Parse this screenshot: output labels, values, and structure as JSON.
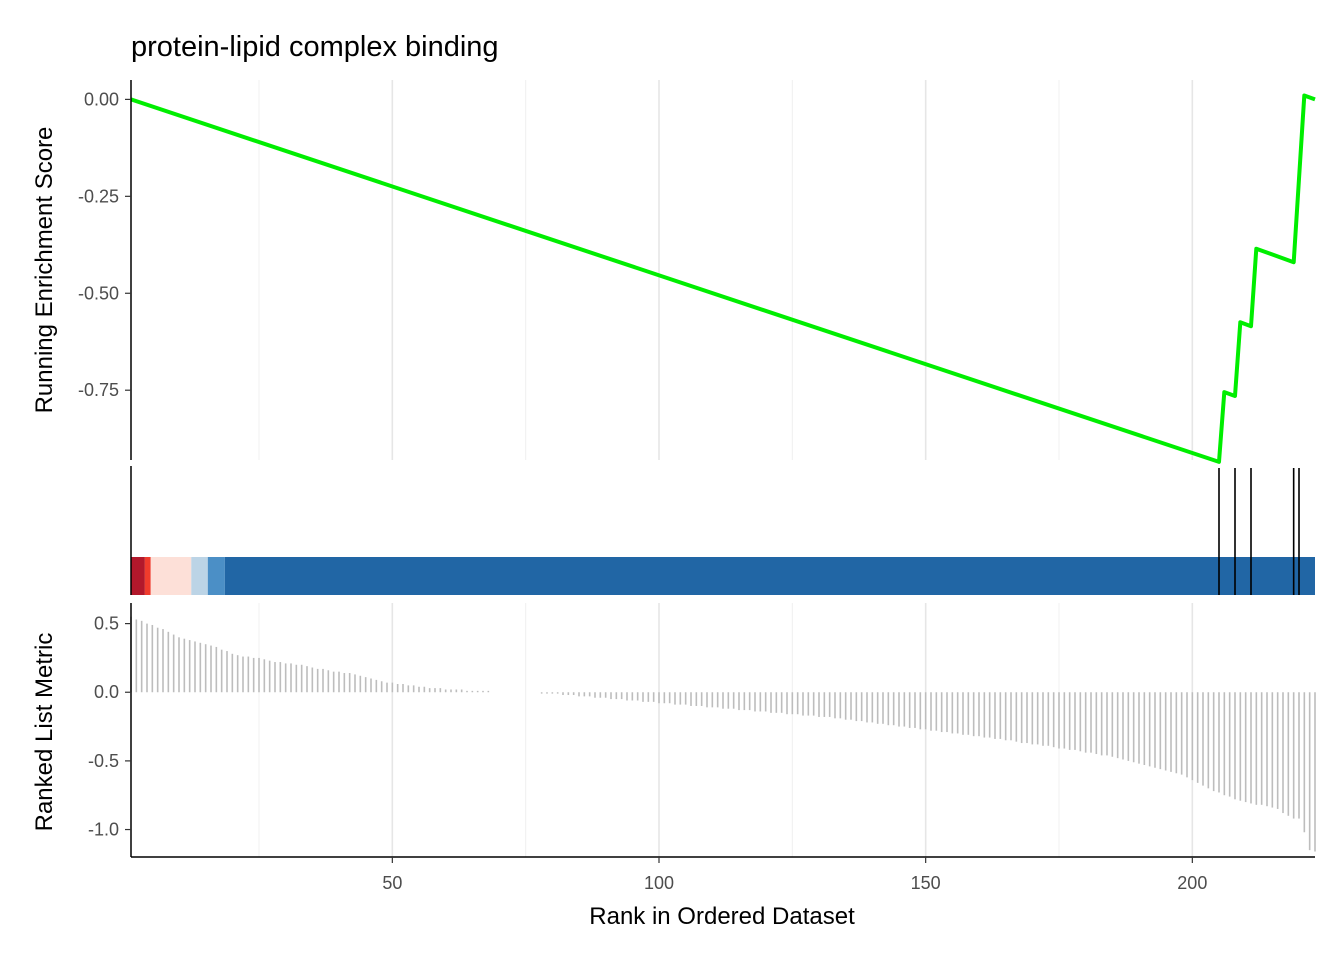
{
  "chart_data": {
    "type": "line",
    "title": "protein-lipid complex binding",
    "xlabel": "Rank in Ordered Dataset",
    "xlim": [
      1,
      223
    ],
    "x_ticks": [
      "50",
      "100",
      "150",
      "200"
    ],
    "panels": [
      {
        "id": "running-es",
        "type": "line",
        "ylabel": "Running Enrichment Score",
        "ylim": [
          -0.93,
          0.05
        ],
        "y_ticks": [
          "0.00",
          "-0.25",
          "-0.50",
          "-0.75"
        ],
        "line_color": "#00ee00",
        "points": [
          [
            1,
            0.0
          ],
          [
            205,
            -0.935
          ],
          [
            206,
            -0.755
          ],
          [
            208,
            -0.765
          ],
          [
            209,
            -0.575
          ],
          [
            211,
            -0.585
          ],
          [
            212,
            -0.385
          ],
          [
            219,
            -0.42
          ],
          [
            221,
            0.01
          ],
          [
            223,
            0.0
          ]
        ]
      },
      {
        "id": "gene-hits",
        "type": "rug",
        "hits": [
          205,
          208,
          211,
          219,
          220
        ],
        "color_bands": [
          {
            "from": 0.5,
            "to": 3.6,
            "color": "#b2182b"
          },
          {
            "from": 3.6,
            "to": 4.7,
            "color": "#ef3b2c"
          },
          {
            "from": 4.7,
            "to": 12.3,
            "color": "#fde0d8"
          },
          {
            "from": 12.3,
            "to": 15.4,
            "color": "#bcd4e6"
          },
          {
            "from": 15.4,
            "to": 18.6,
            "color": "#4b8fc6"
          },
          {
            "from": 18.6,
            "to": 223.5,
            "color": "#2166a5"
          }
        ]
      },
      {
        "id": "ranked-metric",
        "type": "bar",
        "ylabel": "Ranked List Metric",
        "ylim": [
          -1.2,
          0.65
        ],
        "y_ticks": [
          "0.5",
          "0.0",
          "-0.5",
          "-1.0"
        ],
        "bar_color": "#bdbdbd",
        "values": [
          0.55,
          0.53,
          0.52,
          0.5,
          0.49,
          0.47,
          0.46,
          0.44,
          0.42,
          0.4,
          0.39,
          0.38,
          0.37,
          0.36,
          0.35,
          0.34,
          0.33,
          0.31,
          0.3,
          0.28,
          0.27,
          0.26,
          0.26,
          0.25,
          0.25,
          0.24,
          0.23,
          0.22,
          0.22,
          0.21,
          0.21,
          0.2,
          0.2,
          0.19,
          0.18,
          0.17,
          0.17,
          0.16,
          0.15,
          0.15,
          0.14,
          0.14,
          0.13,
          0.12,
          0.11,
          0.1,
          0.09,
          0.08,
          0.07,
          0.07,
          0.06,
          0.06,
          0.05,
          0.05,
          0.04,
          0.04,
          0.03,
          0.03,
          0.03,
          0.02,
          0.02,
          0.02,
          0.02,
          0.01,
          0.01,
          0.01,
          0.01,
          0.01,
          0.0,
          0.0,
          0.0,
          0.0,
          0.0,
          0.0,
          0.0,
          0.0,
          0.0,
          -0.01,
          -0.01,
          -0.01,
          -0.01,
          -0.02,
          -0.02,
          -0.02,
          -0.03,
          -0.03,
          -0.03,
          -0.04,
          -0.04,
          -0.04,
          -0.05,
          -0.05,
          -0.05,
          -0.06,
          -0.06,
          -0.06,
          -0.07,
          -0.07,
          -0.07,
          -0.08,
          -0.08,
          -0.08,
          -0.09,
          -0.09,
          -0.09,
          -0.1,
          -0.1,
          -0.1,
          -0.11,
          -0.11,
          -0.11,
          -0.12,
          -0.12,
          -0.12,
          -0.13,
          -0.13,
          -0.13,
          -0.14,
          -0.14,
          -0.14,
          -0.15,
          -0.15,
          -0.15,
          -0.16,
          -0.16,
          -0.16,
          -0.17,
          -0.17,
          -0.17,
          -0.18,
          -0.18,
          -0.18,
          -0.19,
          -0.19,
          -0.2,
          -0.2,
          -0.21,
          -0.21,
          -0.22,
          -0.22,
          -0.23,
          -0.23,
          -0.24,
          -0.24,
          -0.25,
          -0.25,
          -0.26,
          -0.26,
          -0.27,
          -0.27,
          -0.28,
          -0.28,
          -0.29,
          -0.29,
          -0.3,
          -0.3,
          -0.31,
          -0.31,
          -0.32,
          -0.32,
          -0.33,
          -0.33,
          -0.34,
          -0.34,
          -0.35,
          -0.35,
          -0.36,
          -0.37,
          -0.37,
          -0.38,
          -0.38,
          -0.39,
          -0.39,
          -0.4,
          -0.41,
          -0.41,
          -0.42,
          -0.42,
          -0.43,
          -0.44,
          -0.44,
          -0.45,
          -0.46,
          -0.46,
          -0.47,
          -0.48,
          -0.49,
          -0.5,
          -0.51,
          -0.52,
          -0.53,
          -0.54,
          -0.55,
          -0.56,
          -0.57,
          -0.58,
          -0.59,
          -0.6,
          -0.62,
          -0.64,
          -0.66,
          -0.68,
          -0.7,
          -0.72,
          -0.73,
          -0.75,
          -0.76,
          -0.78,
          -0.79,
          -0.8,
          -0.81,
          -0.82,
          -0.82,
          -0.83,
          -0.84,
          -0.85,
          -0.88,
          -0.9,
          -0.92,
          -0.92,
          -1.02,
          -1.15,
          -1.16
        ]
      }
    ]
  }
}
